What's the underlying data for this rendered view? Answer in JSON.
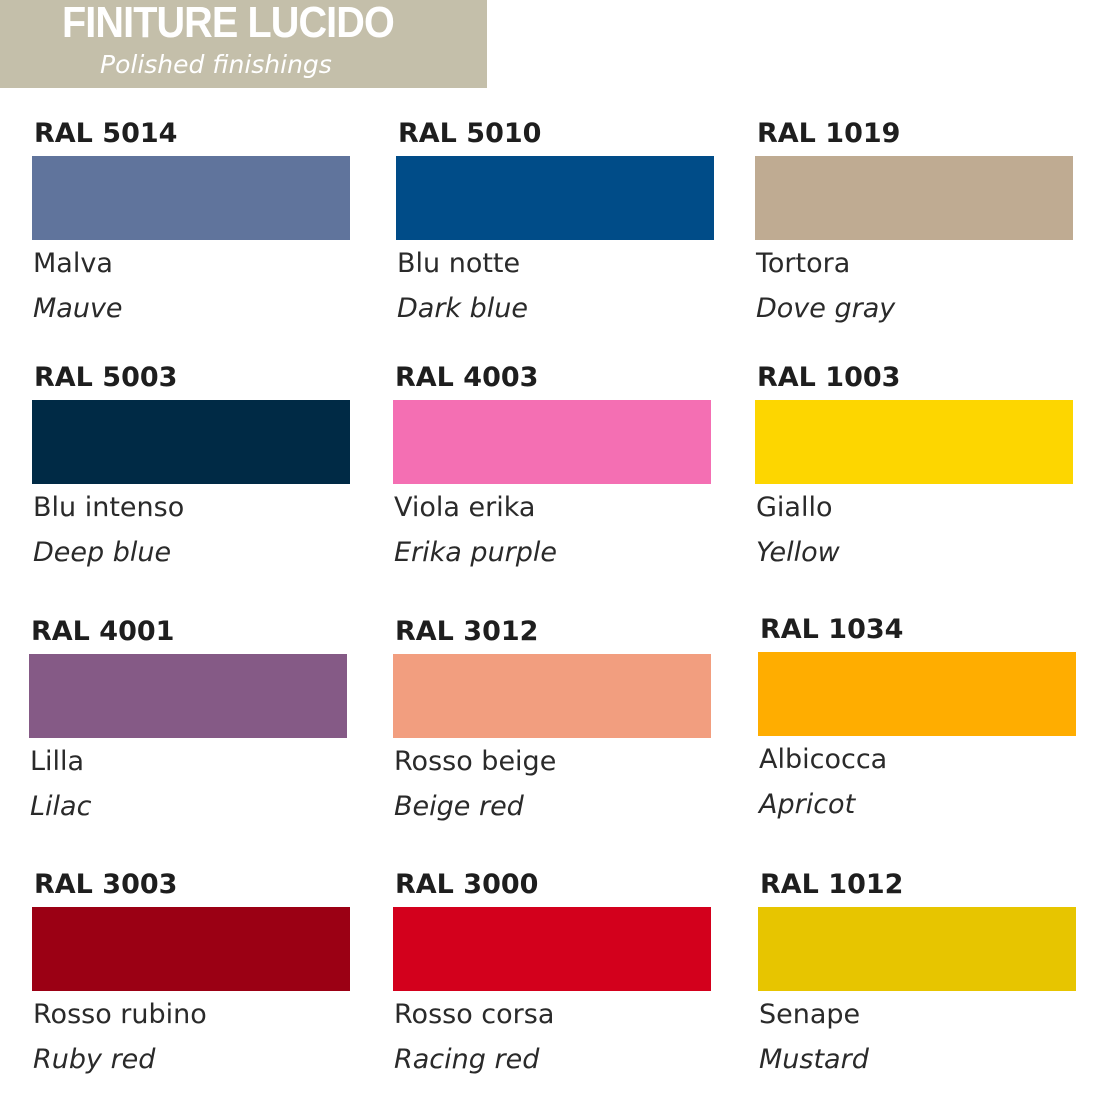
{
  "header": {
    "title": "FINITURE LUCIDO",
    "subtitle": "Polished finishings",
    "color": "#c4bfaa"
  },
  "swatches": [
    {
      "code": "RAL 5014",
      "name_it": "Malva",
      "name_en": "Mauve",
      "color": "#60749c"
    },
    {
      "code": "RAL 5010",
      "name_it": "Blu notte",
      "name_en": "Dark blue",
      "color": "#004c88"
    },
    {
      "code": "RAL 1019",
      "name_it": "Tortora",
      "name_en": "Dove gray",
      "color": "#bfab92"
    },
    {
      "code": "RAL 5003",
      "name_it": "Blu intenso",
      "name_en": "Deep blue",
      "color": "#002a45"
    },
    {
      "code": "RAL 4003",
      "name_it": "Viola erika",
      "name_en": "Erika purple",
      "color": "#f46fb3"
    },
    {
      "code": "RAL 1003",
      "name_it": "Giallo",
      "name_en": "Yellow",
      "color": "#fdd600"
    },
    {
      "code": "RAL 4001",
      "name_it": "Lilla",
      "name_en": "Lilac",
      "color": "#855a86"
    },
    {
      "code": "RAL 3012",
      "name_it": "Rosso beige",
      "name_en": "Beige red",
      "color": "#f29e7f"
    },
    {
      "code": "RAL 1034",
      "name_it": "Albicocca",
      "name_en": "Apricot",
      "color": "#ffad00"
    },
    {
      "code": "RAL 3003",
      "name_it": "Rosso rubino",
      "name_en": "Ruby red",
      "color": "#9b0014"
    },
    {
      "code": "RAL 3000",
      "name_it": "Rosso corsa",
      "name_en": "Racing red",
      "color": "#d3001c"
    },
    {
      "code": "RAL 1012",
      "name_it": "Senape",
      "name_en": "Mustard",
      "color": "#e7c500"
    }
  ]
}
